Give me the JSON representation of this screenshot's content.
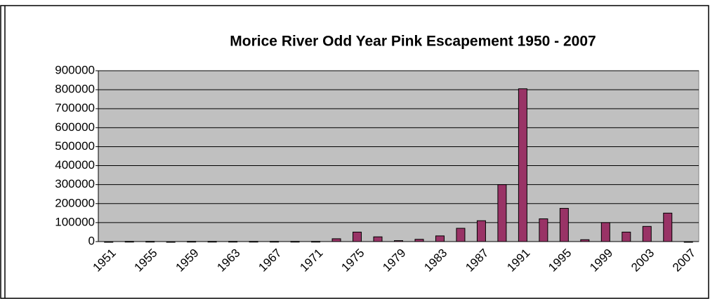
{
  "chart_data": {
    "type": "bar",
    "title": "Morice River Odd Year Pink Escapement  1950 - 2007",
    "categories": [
      "1951",
      null,
      "1955",
      null,
      "1959",
      null,
      "1963",
      null,
      "1967",
      null,
      "1971",
      null,
      "1975",
      null,
      "1979",
      null,
      "1983",
      null,
      "1987",
      null,
      "1991",
      null,
      "1995",
      null,
      "1999",
      null,
      "2003",
      null,
      "2007"
    ],
    "values": [
      0,
      1000,
      1000,
      0,
      1000,
      1000,
      1000,
      1000,
      1000,
      1000,
      1000,
      15000,
      50000,
      25000,
      5000,
      12000,
      30000,
      70000,
      110000,
      300000,
      805000,
      120000,
      175000,
      10000,
      100000,
      50000,
      80000,
      150000,
      0
    ],
    "color": "#993366",
    "ylim": [
      0,
      900000
    ],
    "yticks": [
      0,
      100000,
      200000,
      300000,
      400000,
      500000,
      600000,
      700000,
      800000,
      900000
    ],
    "grid": true
  }
}
